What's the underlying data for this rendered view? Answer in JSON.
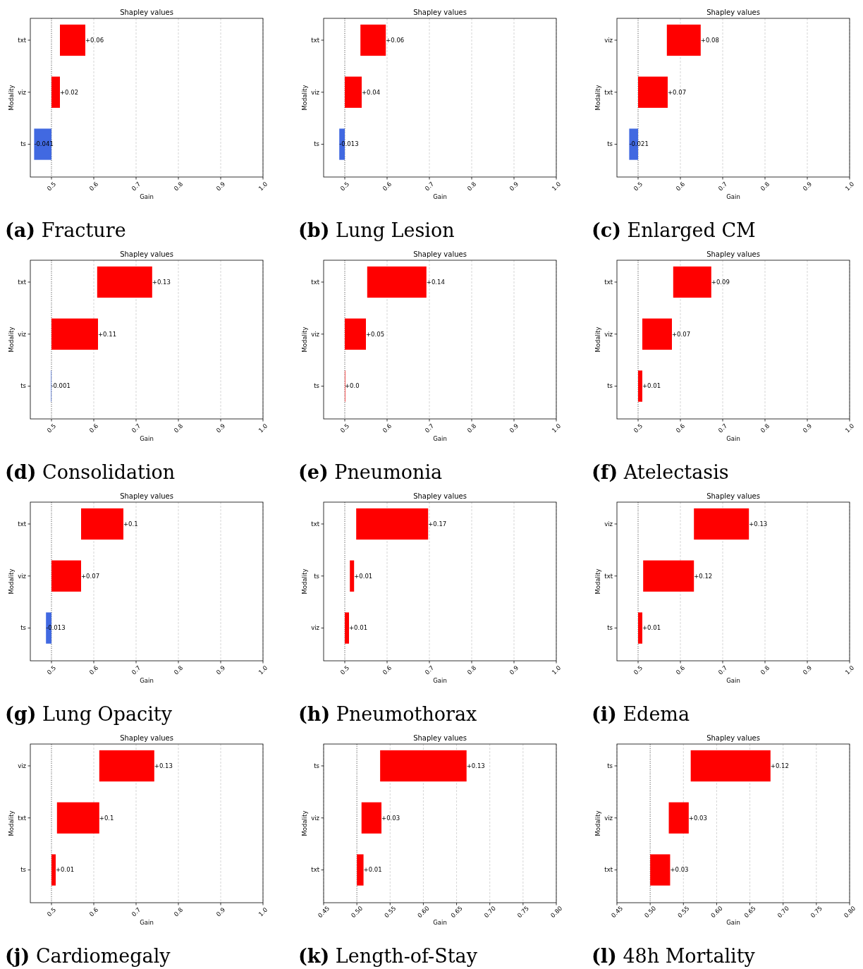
{
  "chart_data": [
    {
      "type": "bar",
      "orientation": "horizontal",
      "title": "Shapley values",
      "xlabel": "Gain",
      "ylabel": "Modality",
      "annotations": [
        "(a) Fracture"
      ],
      "categories": [
        "txt",
        "viz",
        "ts"
      ],
      "values": [
        0.06,
        0.02,
        -0.041
      ],
      "base": [
        0.52,
        0.5,
        0.5
      ],
      "colors": [
        "#ff0000",
        "#ff0000",
        "#4169e1"
      ],
      "value_labels": [
        "+0.06",
        "+0.02",
        "-0.041"
      ],
      "xlim": [
        0.45,
        1.0
      ],
      "xticks": [
        0.5,
        0.6,
        0.7,
        0.8,
        0.9,
        {
          "value": 1.0,
          "label": "1.0"
        }
      ],
      "grid": "x",
      "ref_lines": [
        {
          "axis": "x",
          "value": 0.5,
          "color": "#555555",
          "line_style": "dotted"
        }
      ]
    },
    {
      "type": "bar",
      "orientation": "horizontal",
      "title": "Shapley values",
      "xlabel": "Gain",
      "ylabel": "Modality",
      "annotations": [
        "(b) Lung Lesion"
      ],
      "categories": [
        "txt",
        "viz",
        "ts"
      ],
      "values": [
        0.06,
        0.04,
        -0.013
      ],
      "base": [
        0.537,
        0.5,
        0.5
      ],
      "colors": [
        "#ff0000",
        "#ff0000",
        "#4169e1"
      ],
      "value_labels": [
        "+0.06",
        "+0.04",
        "-0.013"
      ],
      "xlim": [
        0.45,
        1.0
      ],
      "xticks": [
        0.5,
        0.6,
        0.7,
        0.8,
        0.9,
        {
          "value": 1.0,
          "label": "1.0"
        }
      ],
      "grid": "x",
      "ref_lines": [
        {
          "axis": "x",
          "value": 0.5,
          "color": "#555555",
          "line_style": "dotted"
        }
      ]
    },
    {
      "type": "bar",
      "orientation": "horizontal",
      "title": "Shapley values",
      "xlabel": "Gain",
      "ylabel": "Modality",
      "annotations": [
        "(c) Enlarged CM"
      ],
      "categories": [
        "viz",
        "txt",
        "ts"
      ],
      "values": [
        0.08,
        0.07,
        -0.021
      ],
      "base": [
        0.568,
        0.5,
        0.5
      ],
      "colors": [
        "#ff0000",
        "#ff0000",
        "#4169e1"
      ],
      "value_labels": [
        "+0.08",
        "+0.07",
        "-0.021"
      ],
      "xlim": [
        0.45,
        1.0
      ],
      "xticks": [
        0.5,
        0.6,
        0.7,
        0.8,
        0.9,
        {
          "value": 1.0,
          "label": "1.0"
        }
      ],
      "grid": "x",
      "ref_lines": [
        {
          "axis": "x",
          "value": 0.5,
          "color": "#555555",
          "line_style": "dotted"
        }
      ]
    },
    {
      "type": "bar",
      "orientation": "horizontal",
      "title": "Shapley values",
      "xlabel": "Gain",
      "ylabel": "Modality",
      "annotations": [
        "(d) Consolidation"
      ],
      "categories": [
        "txt",
        "viz",
        "ts"
      ],
      "values": [
        0.13,
        0.11,
        -0.001
      ],
      "base": [
        0.608,
        0.5,
        0.5
      ],
      "colors": [
        "#ff0000",
        "#ff0000",
        "#4169e1"
      ],
      "value_labels": [
        "+0.13",
        "+0.11",
        "-0.001"
      ],
      "xlim": [
        0.45,
        1.0
      ],
      "xticks": [
        0.5,
        0.6,
        0.7,
        0.8,
        0.9,
        {
          "value": 1.0,
          "label": "1.0"
        }
      ],
      "grid": "x",
      "ref_lines": [
        {
          "axis": "x",
          "value": 0.5,
          "color": "#555555",
          "line_style": "dotted"
        }
      ]
    },
    {
      "type": "bar",
      "orientation": "horizontal",
      "title": "Shapley values",
      "xlabel": "Gain",
      "ylabel": "Modality",
      "annotations": [
        "(e) Pneumonia"
      ],
      "categories": [
        "txt",
        "viz",
        "ts"
      ],
      "values": [
        0.14,
        0.05,
        0.0
      ],
      "base": [
        0.553,
        0.5,
        0.5
      ],
      "colors": [
        "#ff0000",
        "#ff0000",
        "#ff0000"
      ],
      "value_labels": [
        "+0.14",
        "+0.05",
        "+0.0"
      ],
      "xlim": [
        0.45,
        1.0
      ],
      "xticks": [
        0.5,
        0.6,
        0.7,
        0.8,
        0.9,
        {
          "value": 1.0,
          "label": "1.0"
        }
      ],
      "grid": "x",
      "ref_lines": [
        {
          "axis": "x",
          "value": 0.5,
          "color": "#555555",
          "line_style": "dotted"
        }
      ]
    },
    {
      "type": "bar",
      "orientation": "horizontal",
      "title": "Shapley values",
      "xlabel": "Gain",
      "ylabel": "Modality",
      "annotations": [
        "(f) Atelectasis"
      ],
      "categories": [
        "txt",
        "viz",
        "ts"
      ],
      "values": [
        0.09,
        0.07,
        0.01
      ],
      "base": [
        0.583,
        0.51,
        0.5
      ],
      "colors": [
        "#ff0000",
        "#ff0000",
        "#ff0000"
      ],
      "value_labels": [
        "+0.09",
        "+0.07",
        "+0.01"
      ],
      "xlim": [
        0.45,
        1.0
      ],
      "xticks": [
        0.5,
        0.6,
        0.7,
        0.8,
        0.9,
        {
          "value": 1.0,
          "label": "1.0"
        }
      ],
      "grid": "x",
      "ref_lines": [
        {
          "axis": "x",
          "value": 0.5,
          "color": "#555555",
          "line_style": "dotted"
        }
      ]
    },
    {
      "type": "bar",
      "orientation": "horizontal",
      "title": "Shapley values",
      "xlabel": "Gain",
      "ylabel": "Modality",
      "annotations": [
        "(g) Lung Opacity"
      ],
      "categories": [
        "txt",
        "viz",
        "ts"
      ],
      "values": [
        0.1,
        0.07,
        -0.013
      ],
      "base": [
        0.57,
        0.5,
        0.5
      ],
      "colors": [
        "#ff0000",
        "#ff0000",
        "#4169e1"
      ],
      "value_labels": [
        "+0.1",
        "+0.07",
        "-0.013"
      ],
      "xlim": [
        0.45,
        1.0
      ],
      "xticks": [
        0.5,
        0.6,
        0.7,
        0.8,
        0.9,
        {
          "value": 1.0,
          "label": "1.0"
        }
      ],
      "grid": "x",
      "ref_lines": [
        {
          "axis": "x",
          "value": 0.5,
          "color": "#555555",
          "line_style": "dotted"
        }
      ]
    },
    {
      "type": "bar",
      "orientation": "horizontal",
      "title": "Shapley values",
      "xlabel": "Gain",
      "ylabel": "Modality",
      "annotations": [
        "(h) Pneumothorax"
      ],
      "categories": [
        "txt",
        "ts",
        "viz"
      ],
      "values": [
        0.17,
        0.01,
        0.01
      ],
      "base": [
        0.527,
        0.512,
        0.5
      ],
      "colors": [
        "#ff0000",
        "#ff0000",
        "#ff0000"
      ],
      "value_labels": [
        "+0.17",
        "+0.01",
        "+0.01"
      ],
      "xlim": [
        0.45,
        1.0
      ],
      "xticks": [
        0.5,
        0.6,
        0.7,
        0.8,
        0.9,
        {
          "value": 1.0,
          "label": "1.0"
        }
      ],
      "grid": "x",
      "ref_lines": [
        {
          "axis": "x",
          "value": 0.5,
          "color": "#555555",
          "line_style": "dotted"
        }
      ]
    },
    {
      "type": "bar",
      "orientation": "horizontal",
      "title": "Shapley values",
      "xlabel": "Gain",
      "ylabel": "Modality",
      "annotations": [
        "(i) Edema"
      ],
      "categories": [
        "viz",
        "txt",
        "ts"
      ],
      "values": [
        0.13,
        0.12,
        0.01
      ],
      "base": [
        0.632,
        0.512,
        0.5
      ],
      "colors": [
        "#ff0000",
        "#ff0000",
        "#ff0000"
      ],
      "value_labels": [
        "+0.13",
        "+0.12",
        "+0.01"
      ],
      "xlim": [
        0.45,
        1.0
      ],
      "xticks": [
        0.5,
        0.6,
        0.7,
        0.8,
        0.9,
        {
          "value": 1.0,
          "label": "1.0"
        }
      ],
      "grid": "x",
      "ref_lines": [
        {
          "axis": "x",
          "value": 0.5,
          "color": "#555555",
          "line_style": "dotted"
        }
      ]
    },
    {
      "type": "bar",
      "orientation": "horizontal",
      "title": "Shapley values",
      "xlabel": "Gain",
      "ylabel": "Modality",
      "annotations": [
        "(j) Cardiomegaly"
      ],
      "categories": [
        "viz",
        "txt",
        "ts"
      ],
      "values": [
        0.13,
        0.1,
        0.01
      ],
      "base": [
        0.613,
        0.513,
        0.5
      ],
      "colors": [
        "#ff0000",
        "#ff0000",
        "#ff0000"
      ],
      "value_labels": [
        "+0.13",
        "+0.1",
        "+0.01"
      ],
      "xlim": [
        0.45,
        1.0
      ],
      "xticks": [
        0.5,
        0.6,
        0.7,
        0.8,
        0.9,
        {
          "value": 1.0,
          "label": "1.0"
        }
      ],
      "grid": "x",
      "ref_lines": [
        {
          "axis": "x",
          "value": 0.5,
          "color": "#555555",
          "line_style": "dotted"
        }
      ]
    },
    {
      "type": "bar",
      "orientation": "horizontal",
      "title": "Shapley values",
      "xlabel": "Gain",
      "ylabel": "Modality",
      "annotations": [
        "(k) Length-of-Stay"
      ],
      "categories": [
        "ts",
        "viz",
        "txt"
      ],
      "values": [
        0.13,
        0.03,
        0.01
      ],
      "base": [
        0.535,
        0.507,
        0.5
      ],
      "colors": [
        "#ff0000",
        "#ff0000",
        "#ff0000"
      ],
      "value_labels": [
        "+0.13",
        "+0.03",
        "+0.01"
      ],
      "xlim": [
        0.45,
        0.8
      ],
      "xticks": [
        0.45,
        {
          "value": 0.5,
          "label": "0.50"
        },
        0.55,
        {
          "value": 0.6,
          "label": "0.60"
        },
        0.65,
        {
          "value": 0.7,
          "label": "0.70"
        },
        0.75,
        {
          "value": 0.8,
          "label": "0.80"
        }
      ],
      "grid": "x",
      "ref_lines": [
        {
          "axis": "x",
          "value": 0.5,
          "color": "#555555",
          "line_style": "dotted"
        }
      ]
    },
    {
      "type": "bar",
      "orientation": "horizontal",
      "title": "Shapley values",
      "xlabel": "Gain",
      "ylabel": "Modality",
      "annotations": [
        "(l) 48h Mortality"
      ],
      "categories": [
        "ts",
        "viz",
        "txt"
      ],
      "values": [
        0.12,
        0.03,
        0.03
      ],
      "base": [
        0.561,
        0.528,
        0.5
      ],
      "colors": [
        "#ff0000",
        "#ff0000",
        "#ff0000"
      ],
      "value_labels": [
        "+0.12",
        "+0.03",
        "+0.03"
      ],
      "xlim": [
        0.45,
        0.8
      ],
      "xticks": [
        0.45,
        {
          "value": 0.5,
          "label": "0.50"
        },
        0.55,
        {
          "value": 0.6,
          "label": "0.60"
        },
        0.65,
        {
          "value": 0.7,
          "label": "0.70"
        },
        0.75,
        {
          "value": 0.8,
          "label": "0.80"
        }
      ],
      "grid": "x",
      "ref_lines": [
        {
          "axis": "x",
          "value": 0.5,
          "color": "#555555",
          "line_style": "dotted"
        }
      ]
    }
  ]
}
